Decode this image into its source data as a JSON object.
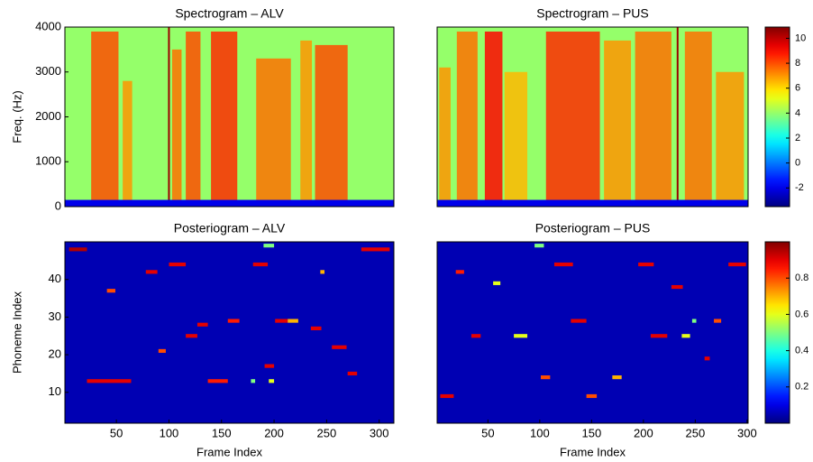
{
  "chart_data": [
    {
      "type": "spectrogram",
      "title": "Spectrogram – ALV",
      "ylabel": "Freq. (Hz)",
      "xlim": [
        1,
        314
      ],
      "ylim": [
        0,
        4000
      ],
      "yticks": [
        0,
        1000,
        2000,
        3000,
        4000
      ],
      "clim": [
        -3.5,
        10.9
      ],
      "background_level": 4,
      "floor": {
        "fmax": 150,
        "level": -2
      },
      "bands": [
        {
          "start": 26,
          "end": 52,
          "fmax": 3900,
          "level": 8
        },
        {
          "start": 56,
          "end": 65,
          "fmax": 2800,
          "level": 7
        },
        {
          "start": 103,
          "end": 112,
          "fmax": 3500,
          "level": 7.5
        },
        {
          "start": 116,
          "end": 130,
          "fmax": 3900,
          "level": 8
        },
        {
          "start": 140,
          "end": 165,
          "fmax": 3900,
          "level": 8.5
        },
        {
          "start": 183,
          "end": 216,
          "fmax": 3300,
          "level": 7.5
        },
        {
          "start": 225,
          "end": 236,
          "fmax": 3700,
          "level": 7
        },
        {
          "start": 239,
          "end": 270,
          "fmax": 3600,
          "level": 8
        }
      ],
      "lines": [
        {
          "x": 100,
          "level": 10.5
        }
      ]
    },
    {
      "type": "spectrogram",
      "title": "Spectrogram – PUS",
      "xlim": [
        1,
        301
      ],
      "ylim": [
        0,
        4000
      ],
      "clim": [
        -3.5,
        10.9
      ],
      "background_level": 4,
      "floor": {
        "fmax": 150,
        "level": -2
      },
      "bands": [
        {
          "start": 3,
          "end": 14,
          "fmax": 3100,
          "level": 7
        },
        {
          "start": 20,
          "end": 40,
          "fmax": 3900,
          "level": 7.5
        },
        {
          "start": 47,
          "end": 64,
          "fmax": 3900,
          "level": 9
        },
        {
          "start": 66,
          "end": 88,
          "fmax": 3000,
          "level": 6.5
        },
        {
          "start": 106,
          "end": 158,
          "fmax": 3900,
          "level": 8.5
        },
        {
          "start": 162,
          "end": 188,
          "fmax": 3700,
          "level": 7
        },
        {
          "start": 192,
          "end": 227,
          "fmax": 3900,
          "level": 7.5
        },
        {
          "start": 240,
          "end": 266,
          "fmax": 3900,
          "level": 7.5
        },
        {
          "start": 270,
          "end": 297,
          "fmax": 3000,
          "level": 7
        }
      ],
      "lines": [
        {
          "x": 233,
          "level": 10.5
        }
      ],
      "colorbar_ticks": [
        -2,
        0,
        2,
        4,
        6,
        8,
        10
      ]
    },
    {
      "type": "posteriogram",
      "title": "Posteriogram – ALV",
      "xlabel": "Frame Index",
      "ylabel": "Phoneme Index",
      "xlim": [
        1,
        314
      ],
      "ylim": [
        1.8,
        50
      ],
      "xticks": [
        50,
        100,
        150,
        200,
        250,
        300
      ],
      "yticks": [
        10,
        20,
        30,
        40
      ],
      "clim": [
        0,
        1
      ],
      "background_level": 0.05,
      "activations": [
        {
          "start": 5,
          "end": 22,
          "phoneme": 48,
          "value": 0.95
        },
        {
          "start": 22,
          "end": 64,
          "phoneme": 13,
          "value": 0.9
        },
        {
          "start": 137,
          "end": 156,
          "phoneme": 13,
          "value": 0.85
        },
        {
          "start": 178,
          "end": 182,
          "phoneme": 13,
          "value": 0.5
        },
        {
          "start": 195,
          "end": 200,
          "phoneme": 13,
          "value": 0.6
        },
        {
          "start": 41,
          "end": 49,
          "phoneme": 37,
          "value": 0.8
        },
        {
          "start": 90,
          "end": 97,
          "phoneme": 21,
          "value": 0.8
        },
        {
          "start": 116,
          "end": 127,
          "phoneme": 25,
          "value": 0.9
        },
        {
          "start": 127,
          "end": 137,
          "phoneme": 28,
          "value": 0.9
        },
        {
          "start": 156,
          "end": 167,
          "phoneme": 29,
          "value": 0.85
        },
        {
          "start": 201,
          "end": 213,
          "phoneme": 29,
          "value": 0.9
        },
        {
          "start": 213,
          "end": 223,
          "phoneme": 29,
          "value": 0.7
        },
        {
          "start": 235,
          "end": 245,
          "phoneme": 27,
          "value": 0.9
        },
        {
          "start": 255,
          "end": 269,
          "phoneme": 22,
          "value": 0.9
        },
        {
          "start": 270,
          "end": 279,
          "phoneme": 15,
          "value": 0.9
        },
        {
          "start": 191,
          "end": 200,
          "phoneme": 17,
          "value": 0.9
        },
        {
          "start": 100,
          "end": 116,
          "phoneme": 44,
          "value": 0.9
        },
        {
          "start": 180,
          "end": 194,
          "phoneme": 44,
          "value": 0.9
        },
        {
          "start": 78,
          "end": 89,
          "phoneme": 42,
          "value": 0.9
        },
        {
          "start": 244,
          "end": 248,
          "phoneme": 42,
          "value": 0.7
        },
        {
          "start": 283,
          "end": 310,
          "phoneme": 48,
          "value": 0.9
        },
        {
          "start": 190,
          "end": 200,
          "phoneme": 49,
          "value": 0.5
        }
      ]
    },
    {
      "type": "posteriogram",
      "title": "Posteriogram – PUS",
      "xlabel": "Frame Index",
      "xlim": [
        1,
        301
      ],
      "ylim": [
        1.8,
        50
      ],
      "xticks": [
        50,
        100,
        150,
        200,
        250,
        300
      ],
      "clim": [
        0,
        1
      ],
      "background_level": 0.05,
      "activations": [
        {
          "start": 4,
          "end": 17,
          "phoneme": 9,
          "value": 0.9
        },
        {
          "start": 145,
          "end": 155,
          "phoneme": 9,
          "value": 0.8
        },
        {
          "start": 114,
          "end": 132,
          "phoneme": 44,
          "value": 0.9
        },
        {
          "start": 195,
          "end": 210,
          "phoneme": 44,
          "value": 0.9
        },
        {
          "start": 282,
          "end": 299,
          "phoneme": 44,
          "value": 0.9
        },
        {
          "start": 19,
          "end": 27,
          "phoneme": 42,
          "value": 0.85
        },
        {
          "start": 227,
          "end": 238,
          "phoneme": 38,
          "value": 0.9
        },
        {
          "start": 130,
          "end": 145,
          "phoneme": 29,
          "value": 0.9
        },
        {
          "start": 268,
          "end": 275,
          "phoneme": 29,
          "value": 0.8
        },
        {
          "start": 34,
          "end": 43,
          "phoneme": 25,
          "value": 0.9
        },
        {
          "start": 75,
          "end": 88,
          "phoneme": 25,
          "value": 0.6
        },
        {
          "start": 207,
          "end": 223,
          "phoneme": 25,
          "value": 0.9
        },
        {
          "start": 237,
          "end": 245,
          "phoneme": 25,
          "value": 0.6
        },
        {
          "start": 101,
          "end": 110,
          "phoneme": 14,
          "value": 0.8
        },
        {
          "start": 170,
          "end": 179,
          "phoneme": 14,
          "value": 0.7
        },
        {
          "start": 259,
          "end": 264,
          "phoneme": 19,
          "value": 0.9
        },
        {
          "start": 95,
          "end": 104,
          "phoneme": 49,
          "value": 0.5
        },
        {
          "start": 55,
          "end": 62,
          "phoneme": 39,
          "value": 0.6
        },
        {
          "start": 247,
          "end": 251,
          "phoneme": 29,
          "value": 0.5
        }
      ],
      "colorbar_ticks": [
        0.2,
        0.4,
        0.6,
        0.8
      ]
    }
  ]
}
